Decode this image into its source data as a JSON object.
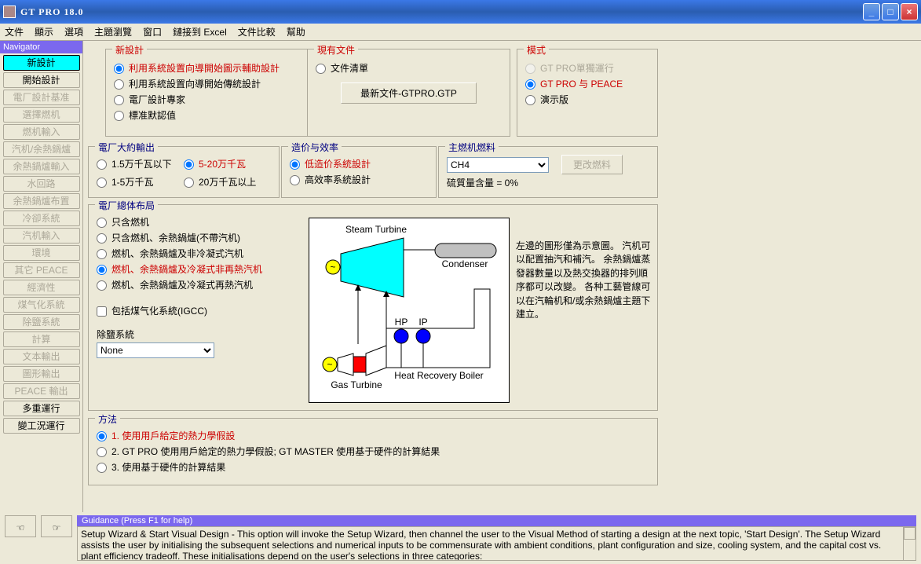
{
  "title": "GT PRO 18.0",
  "menus": [
    "文件",
    "顯示",
    "選項",
    "主題瀏覽",
    "窗口",
    "鏈接到 Excel",
    "文件比較",
    "幫助"
  ],
  "nav": {
    "header": "Navigator",
    "items": [
      {
        "label": "新設計",
        "active": true
      },
      {
        "label": "開始設計"
      },
      {
        "label": "電厂設計基准",
        "dis": true
      },
      {
        "label": "選擇燃机",
        "dis": true
      },
      {
        "label": "燃机輸入",
        "dis": true
      },
      {
        "label": "汽机/余熱鍋爐",
        "dis": true
      },
      {
        "label": "余熱鍋爐輸入",
        "dis": true
      },
      {
        "label": "水回路",
        "dis": true
      },
      {
        "label": "余熱鍋爐布置",
        "dis": true
      },
      {
        "label": "冷卻系統",
        "dis": true
      },
      {
        "label": "汽机輸入",
        "dis": true
      },
      {
        "label": "環境",
        "dis": true
      },
      {
        "label": "其它 PEACE",
        "dis": true
      },
      {
        "label": "經濟性",
        "dis": true
      },
      {
        "label": "煤气化系統",
        "dis": true
      },
      {
        "label": "除鹽系統",
        "dis": true
      },
      {
        "label": "計算",
        "dis": true
      },
      {
        "label": "文本輸出",
        "dis": true
      },
      {
        "label": "圖形輸出",
        "dis": true
      },
      {
        "label": "PEACE 輸出",
        "dis": true
      },
      {
        "label": "多重運行"
      },
      {
        "label": "變工況運行"
      }
    ]
  },
  "newDesign": {
    "title": "新設計",
    "opts": [
      "利用系統設置向導開始圖示輔助設計",
      "利用系統設置向導開始傳統設計",
      "電厂設計專家",
      "標准默認值"
    ],
    "sel": 0
  },
  "existing": {
    "title": "現有文件",
    "opt": "文件清單",
    "btn": "最新文件-GTPRO.GTP"
  },
  "mode": {
    "title": "模式",
    "opts": [
      "GT PRO單獨運行",
      "GT PRO 与 PEACE",
      "演示版"
    ],
    "sel": 1,
    "dis": [
      0
    ]
  },
  "output": {
    "title": "電厂大約輸出",
    "rows": [
      [
        "1.5万千瓦以下",
        "5-20万千瓦"
      ],
      [
        "1-5万千瓦",
        "20万千瓦以上"
      ]
    ],
    "sel": "5-20万千瓦"
  },
  "cost": {
    "title": "造价与效率",
    "opts": [
      "低造价系統設計",
      "高效率系統設計"
    ],
    "sel": 0
  },
  "fuel": {
    "title": "主燃机燃料",
    "value": "CH4",
    "btn": "更改燃料",
    "note": "硫質量含量 = 0%"
  },
  "layout": {
    "title": "電厂總体布局",
    "opts": [
      "只含燃机",
      "只含燃机、余熱鍋爐(不帶汽机)",
      "燃机、余熱鍋爐及非冷凝式汽机",
      "燃机、余熱鍋爐及冷凝式非再熱汽机",
      "燃机、余熱鍋爐及冷凝式再熱汽机"
    ],
    "sel": 3,
    "igcc": "包括煤气化系統(IGCC)",
    "desalt_label": "除鹽系統",
    "desalt_value": "None"
  },
  "diagram": {
    "labels": {
      "st": "Steam Turbine",
      "cond": "Condenser",
      "gt": "Gas Turbine",
      "hrb": "Heat Recovery Boiler",
      "hp": "HP",
      "ip": "IP"
    },
    "note": "左邊的圖形僅為示意圖。  汽机可以配置抽汽和補汽。  余熱鍋爐蒸發器數量以及熱交換器的排列順序都可以改變。  各种工藝管線可以在汽輪机和/或余熱鍋爐主題下建立。"
  },
  "method": {
    "title": "方法",
    "opts": [
      "1. 使用用戶給定的熱力學假設",
      "2. GT PRO 使用用戶給定的熱力學假設; GT MASTER 使用基于硬件的計算結果",
      "3. 使用基于硬件的計算結果"
    ],
    "sel": 0
  },
  "guidance": {
    "bar": "Guidance (Press F1 for help)",
    "text": "Setup Wizard & Start Visual Design -  This option will invoke the Setup Wizard, then channel the user to the Visual Method of starting a design at the next topic, 'Start Design'.  The Setup Wizard assists the user by initialising the subsequent selections and numerical inputs to be commensurate with ambient conditions, plant configuration and size, cooling system, and the capital cost vs. plant efficiency tradeoff.  These initialisations depend on the user's selections in three categories:"
  }
}
